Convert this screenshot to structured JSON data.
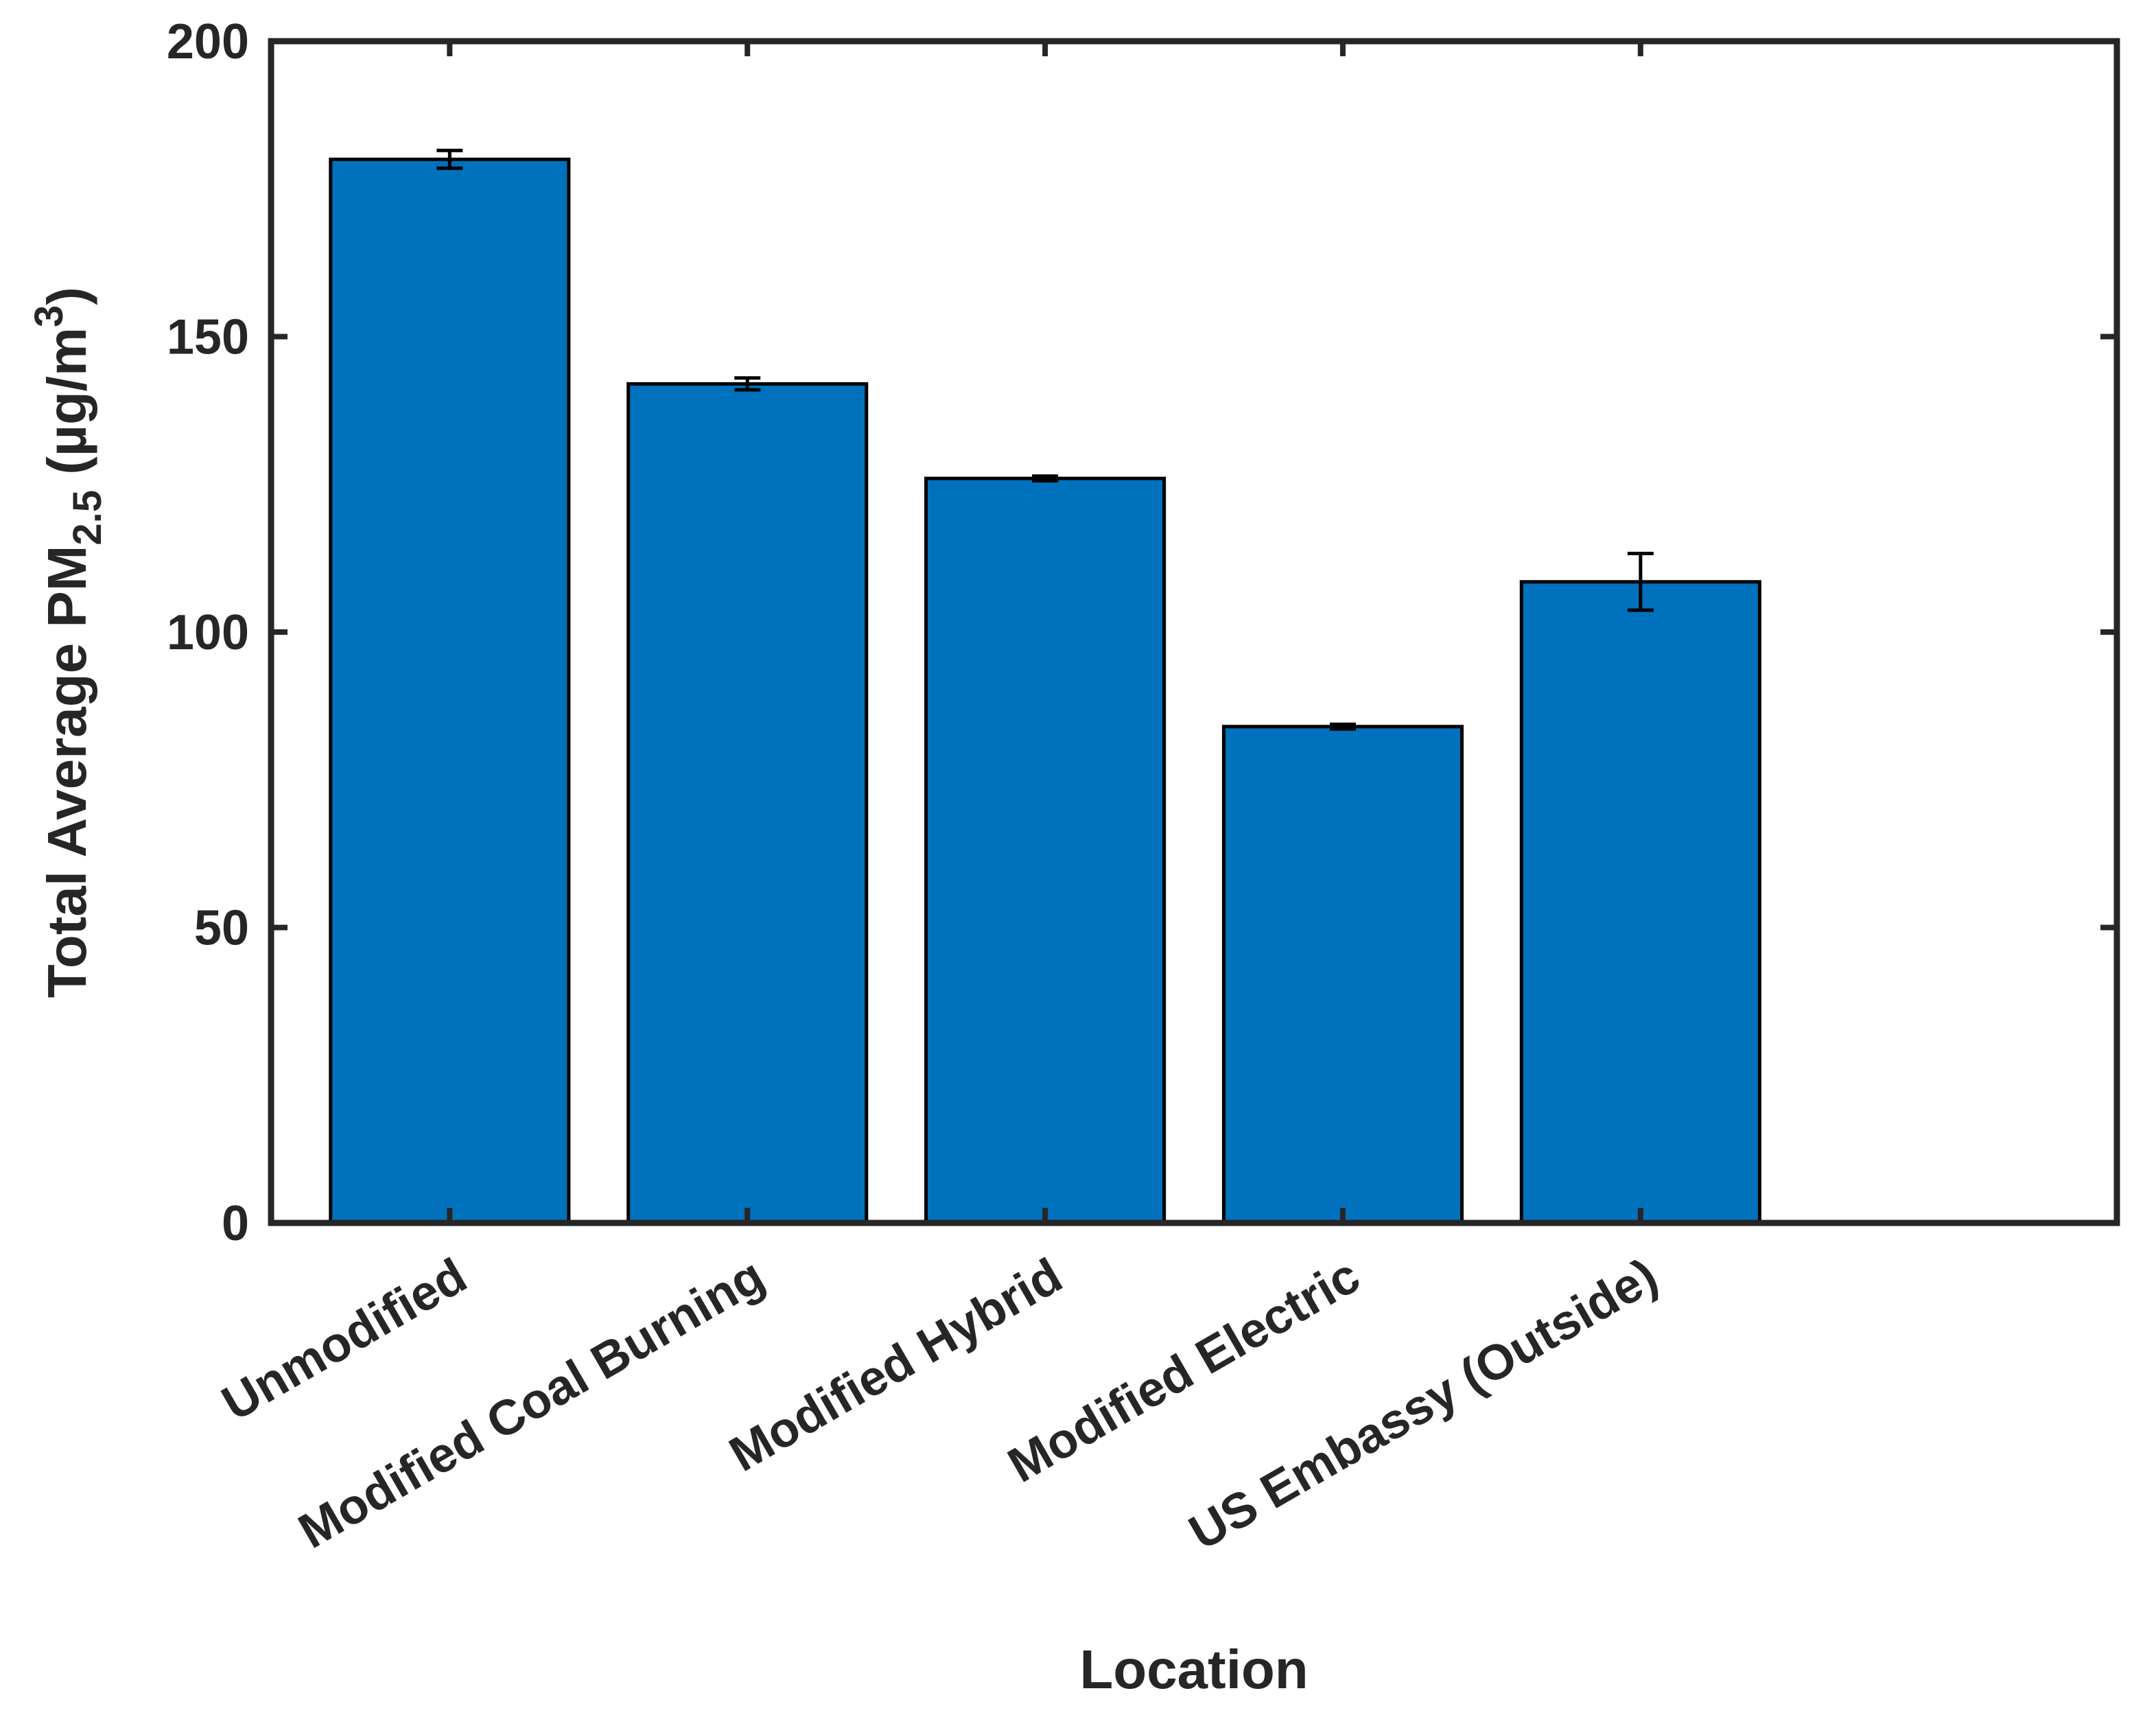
{
  "chart_data": {
    "type": "bar",
    "categories": [
      "Unmodified",
      "Modified Coal Burning",
      "Modified Hybrid",
      "Modified Electric",
      "US Embassy (Outside)"
    ],
    "values": [
      180,
      142,
      126,
      84,
      108.5
    ],
    "error": [
      1.5,
      1.0,
      0.4,
      0.4,
      4.8
    ],
    "xlabel": "Location",
    "ylabel_main": "Total Average PM",
    "ylabel_sub": "2.5",
    "ylabel_unit": " (µg/m",
    "ylabel_sup": "3",
    "ylabel_close": ")",
    "ylim": [
      0,
      200
    ],
    "yticks": [
      0,
      50,
      100,
      150,
      200
    ],
    "xlim": [
      0.4,
      6.6
    ],
    "bar_color": "#0072BD",
    "grid": false
  }
}
